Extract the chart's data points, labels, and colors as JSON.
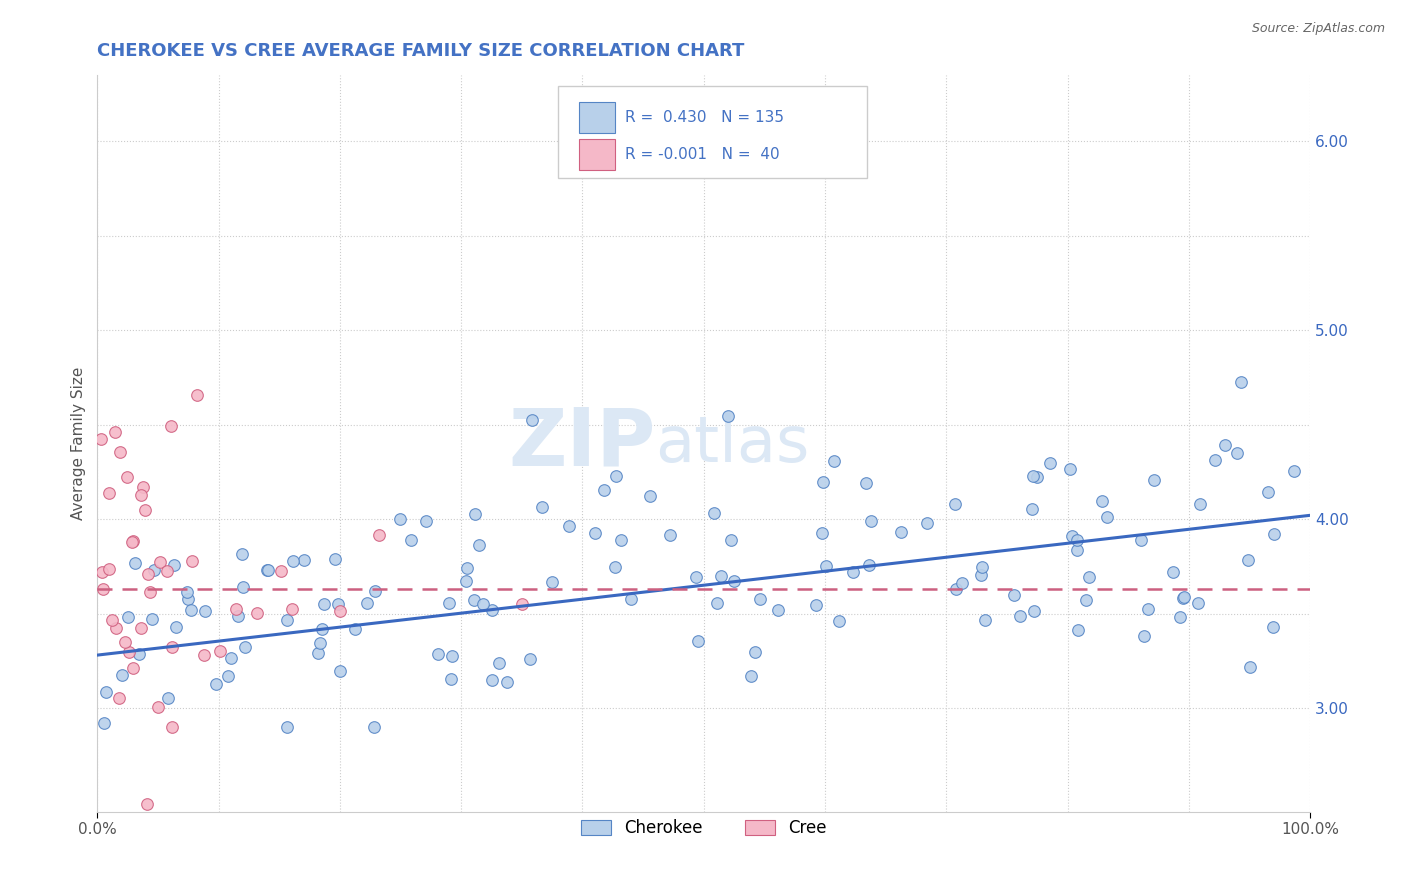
{
  "title": "CHEROKEE VS CREE AVERAGE FAMILY SIZE CORRELATION CHART",
  "source": "Source: ZipAtlas.com",
  "ylabel": "Average Family Size",
  "xlim": [
    0.0,
    1.0
  ],
  "ylim": [
    2.45,
    6.35
  ],
  "yticks_right": [
    3.0,
    4.0,
    5.0,
    6.0
  ],
  "cherokee_R": 0.43,
  "cherokee_N": 135,
  "cree_R": -0.001,
  "cree_N": 40,
  "cherokee_color": "#b8d0ea",
  "cherokee_edge_color": "#5585c5",
  "cherokee_line_color": "#3a68c0",
  "cree_color": "#f5b8c8",
  "cree_edge_color": "#d06080",
  "cree_line_color": "#cc6080",
  "background_color": "#ffffff",
  "grid_color": "#cccccc",
  "title_color": "#4472c4",
  "legend_R_color": "#4472c4",
  "watermark_color": "#dce8f5",
  "cherokee_line_y0": 3.28,
  "cherokee_line_y1": 4.02,
  "cree_line_y": 3.63
}
